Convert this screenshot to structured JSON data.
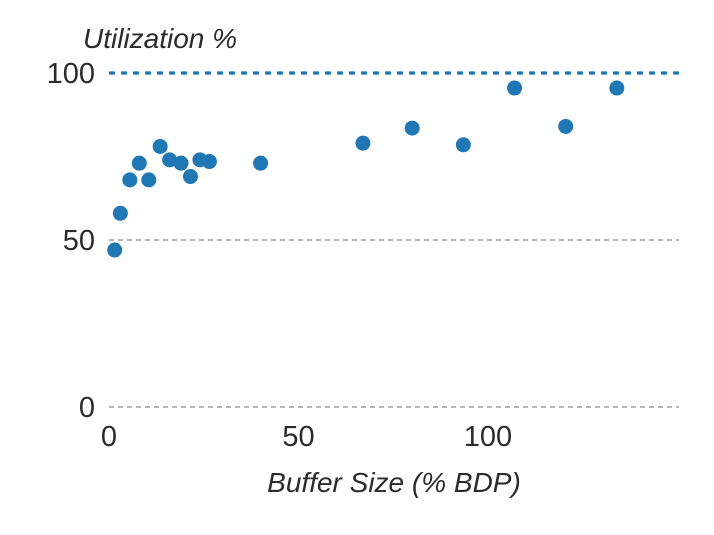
{
  "chart_data": {
    "type": "scatter",
    "title": "",
    "xlabel": "Buffer Size (% BDP)",
    "ylabel": "Utilization %",
    "xlim": [
      0,
      150
    ],
    "ylim": [
      0,
      100
    ],
    "xticks": [
      0,
      50,
      100
    ],
    "yticks": [
      0,
      50,
      100
    ],
    "grid": "horizontal dashed",
    "reference_line": {
      "y": 100,
      "color": "#1f77b4",
      "style": "dotted"
    },
    "marker_color": "#1f77b4",
    "x": [
      1.5,
      3,
      5.5,
      8,
      10.5,
      13.5,
      16,
      19,
      21.5,
      24,
      26.5,
      40,
      67,
      80,
      93.5,
      107,
      120.5,
      134
    ],
    "y": [
      47,
      58,
      68,
      73,
      68,
      78,
      74,
      73,
      69,
      74,
      73.5,
      73,
      79,
      83.5,
      78.5,
      95.5,
      84,
      95.5
    ]
  }
}
